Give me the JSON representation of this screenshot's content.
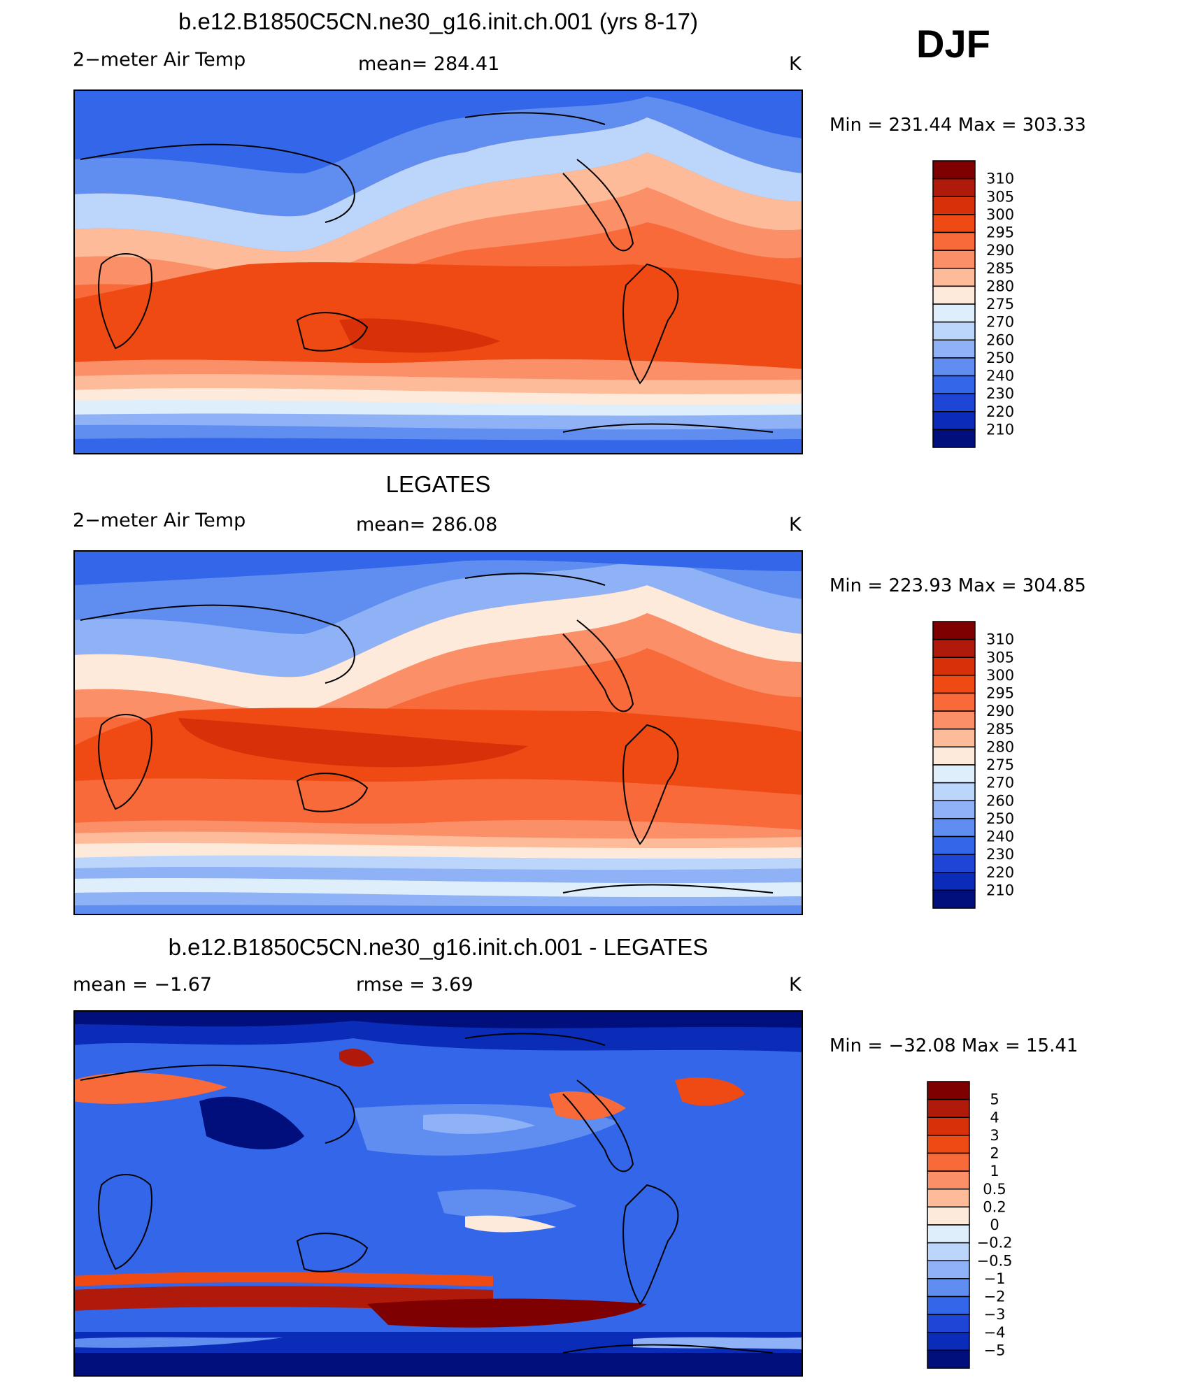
{
  "season": "DJF",
  "chart_data": [
    {
      "type": "heatmap",
      "title": "b.e12.B1850C5CN.ne30_g16.init.ch.001 (yrs 8-17)",
      "left_label": "2−meter Air Temp",
      "center_label": "mean=  284.41",
      "units": "K",
      "minmax": "Min  =  231.44  Max  =  303.33",
      "colorbar": {
        "labels": [
          "310",
          "305",
          "300",
          "295",
          "290",
          "285",
          "280",
          "275",
          "270",
          "260",
          "250",
          "240",
          "230",
          "220",
          "210"
        ],
        "colors": [
          "#7f0000",
          "#b01a0a",
          "#d83008",
          "#ef4a14",
          "#f86a3a",
          "#fb9068",
          "#fdbb9a",
          "#feeadb",
          "#dfeefb",
          "#bcd6fb",
          "#8fb2f7",
          "#5f8ef0",
          "#3366e8",
          "#1f45d6",
          "#0a2cb8",
          "#000f7c"
        ]
      }
    },
    {
      "type": "heatmap",
      "title": "LEGATES",
      "left_label": "2−meter Air Temp",
      "center_label": "mean=  286.08",
      "units": "K",
      "minmax": "Min  =  223.93  Max  =  304.85",
      "colorbar": {
        "labels": [
          "310",
          "305",
          "300",
          "295",
          "290",
          "285",
          "280",
          "275",
          "270",
          "260",
          "250",
          "240",
          "230",
          "220",
          "210"
        ],
        "colors": [
          "#7f0000",
          "#b01a0a",
          "#d83008",
          "#ef4a14",
          "#f86a3a",
          "#fb9068",
          "#fdbb9a",
          "#feeadb",
          "#dfeefb",
          "#bcd6fb",
          "#8fb2f7",
          "#5f8ef0",
          "#3366e8",
          "#1f45d6",
          "#0a2cb8",
          "#000f7c"
        ]
      }
    },
    {
      "type": "heatmap",
      "title": "b.e12.B1850C5CN.ne30_g16.init.ch.001 - LEGATES",
      "left_label": "mean  =    −1.67",
      "center_label": "rmse  =     3.69",
      "units": "K",
      "minmax": "Min  =  −32.08  Max  =    15.41",
      "colorbar": {
        "labels": [
          "5",
          "4",
          "3",
          "2",
          "1",
          "0.5",
          "0.2",
          "0",
          "−0.2",
          "−0.5",
          "−1",
          "−2",
          "−3",
          "−4",
          "−5"
        ],
        "colors": [
          "#7f0000",
          "#b01a0a",
          "#d83008",
          "#ef4a14",
          "#f86a3a",
          "#fb9068",
          "#fdbb9a",
          "#feeadb",
          "#dfeefb",
          "#bcd6fb",
          "#8fb2f7",
          "#5f8ef0",
          "#3366e8",
          "#1f45d6",
          "#0a2cb8",
          "#000f7c"
        ]
      }
    }
  ]
}
